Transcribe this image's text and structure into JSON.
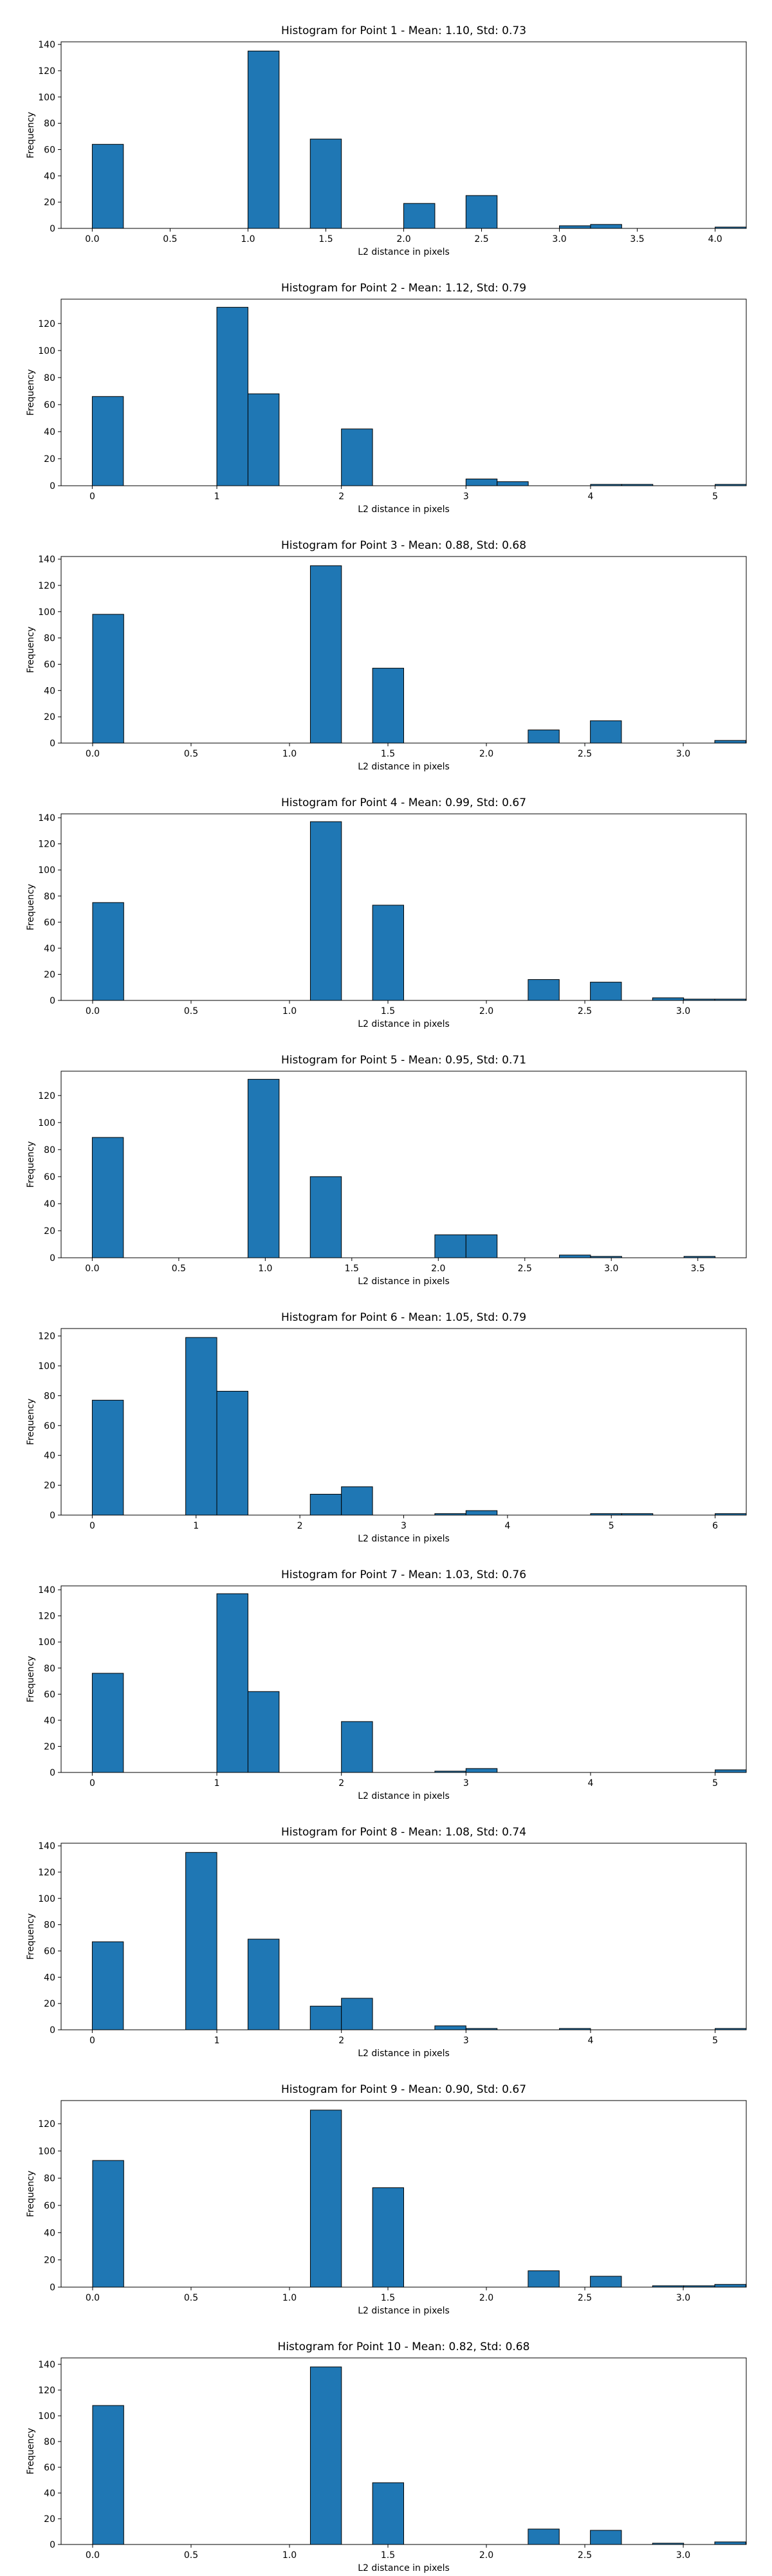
{
  "chart_data": [
    {
      "type": "bar",
      "title": "Histogram for Point 1 - Mean: 1.10, Std: 0.73",
      "xlabel": "L2 distance in pixels",
      "ylabel": "Frequency",
      "xlim": [
        -0.2,
        4.2
      ],
      "ylim": [
        0,
        142
      ],
      "xticks": [
        0,
        0.5,
        1,
        1.5,
        2,
        2.5,
        3,
        3.5,
        4
      ],
      "xtick_labels": [
        "0.0",
        "0.5",
        "1.0",
        "1.5",
        "2.0",
        "2.5",
        "3.0",
        "3.5",
        "4.0"
      ],
      "yticks": [
        0,
        20,
        40,
        60,
        80,
        100,
        120,
        140
      ],
      "ytick_labels": [
        "0",
        "20",
        "40",
        "60",
        "80",
        "100",
        "120",
        "140"
      ],
      "bin_width": 0.2,
      "bin_start": 0,
      "values": [
        64,
        0,
        0,
        0,
        0,
        135,
        0,
        68,
        0,
        0,
        19,
        0,
        25,
        0,
        0,
        2,
        3,
        0,
        0,
        0,
        1
      ]
    },
    {
      "type": "bar",
      "title": "Histogram for Point 2 - Mean: 1.12, Std: 0.79",
      "xlabel": "L2 distance in pixels",
      "ylabel": "Frequency",
      "xlim": [
        -0.25,
        5.25
      ],
      "ylim": [
        0,
        138
      ],
      "xticks": [
        0,
        1,
        2,
        3,
        4,
        5
      ],
      "xtick_labels": [
        "0",
        "1",
        "2",
        "3",
        "4",
        "5"
      ],
      "yticks": [
        0,
        20,
        40,
        60,
        80,
        100,
        120
      ],
      "ytick_labels": [
        "0",
        "20",
        "40",
        "60",
        "80",
        "100",
        "120"
      ],
      "bin_width": 0.25,
      "bin_start": 0,
      "values": [
        66,
        0,
        0,
        0,
        132,
        68,
        0,
        0,
        42,
        0,
        0,
        0,
        5,
        3,
        0,
        0,
        1,
        1,
        0,
        0,
        1
      ]
    },
    {
      "type": "bar",
      "title": "Histogram for Point 3 - Mean: 0.88, Std: 0.68",
      "xlabel": "L2 distance in pixels",
      "ylabel": "Frequency",
      "xlim": [
        -0.16,
        3.32
      ],
      "ylim": [
        0,
        142
      ],
      "xticks": [
        0,
        0.5,
        1,
        1.5,
        2,
        2.5,
        3
      ],
      "xtick_labels": [
        "0.0",
        "0.5",
        "1.0",
        "1.5",
        "2.0",
        "2.5",
        "3.0"
      ],
      "yticks": [
        0,
        20,
        40,
        60,
        80,
        100,
        120,
        140
      ],
      "ytick_labels": [
        "0",
        "20",
        "40",
        "60",
        "80",
        "100",
        "120",
        "140"
      ],
      "bin_width": 0.158,
      "bin_start": 0,
      "values": [
        98,
        0,
        0,
        0,
        0,
        0,
        0,
        135,
        0,
        57,
        0,
        0,
        0,
        0,
        10,
        0,
        17,
        0,
        0,
        0,
        2
      ]
    },
    {
      "type": "bar",
      "title": "Histogram for Point 4 - Mean: 0.99, Std: 0.67",
      "xlabel": "L2 distance in pixels",
      "ylabel": "Frequency",
      "xlim": [
        -0.16,
        3.32
      ],
      "ylim": [
        0,
        143
      ],
      "xticks": [
        0,
        0.5,
        1,
        1.5,
        2,
        2.5,
        3
      ],
      "xtick_labels": [
        "0.0",
        "0.5",
        "1.0",
        "1.5",
        "2.0",
        "2.5",
        "3.0"
      ],
      "yticks": [
        0,
        20,
        40,
        60,
        80,
        100,
        120,
        140
      ],
      "ytick_labels": [
        "0",
        "20",
        "40",
        "60",
        "80",
        "100",
        "120",
        "140"
      ],
      "bin_width": 0.158,
      "bin_start": 0,
      "values": [
        75,
        0,
        0,
        0,
        0,
        0,
        0,
        137,
        0,
        73,
        0,
        0,
        0,
        0,
        16,
        0,
        14,
        0,
        2,
        1,
        1
      ]
    },
    {
      "type": "bar",
      "title": "Histogram for Point 5 - Mean: 0.95, Std: 0.71",
      "xlabel": "L2 distance in pixels",
      "ylabel": "Frequency",
      "xlim": [
        -0.18,
        3.78
      ],
      "ylim": [
        0,
        138
      ],
      "xticks": [
        0,
        0.5,
        1,
        1.5,
        2,
        2.5,
        3,
        3.5
      ],
      "xtick_labels": [
        "0.0",
        "0.5",
        "1.0",
        "1.5",
        "2.0",
        "2.5",
        "3.0",
        "3.5"
      ],
      "yticks": [
        0,
        20,
        40,
        60,
        80,
        100,
        120
      ],
      "ytick_labels": [
        "0",
        "20",
        "40",
        "60",
        "80",
        "100",
        "120"
      ],
      "bin_width": 0.18,
      "bin_start": 0,
      "values": [
        89,
        0,
        0,
        0,
        0,
        132,
        0,
        60,
        0,
        0,
        0,
        17,
        17,
        0,
        0,
        2,
        1,
        0,
        0,
        1,
        0
      ]
    },
    {
      "type": "bar",
      "title": "Histogram for Point 6 - Mean: 1.05, Std: 0.79",
      "xlabel": "L2 distance in pixels",
      "ylabel": "Frequency",
      "xlim": [
        -0.3,
        6.3
      ],
      "ylim": [
        0,
        125
      ],
      "xticks": [
        0,
        1,
        2,
        3,
        4,
        5,
        6
      ],
      "xtick_labels": [
        "0",
        "1",
        "2",
        "3",
        "4",
        "5",
        "6"
      ],
      "yticks": [
        0,
        20,
        40,
        60,
        80,
        100,
        120
      ],
      "ytick_labels": [
        "0",
        "20",
        "40",
        "60",
        "80",
        "100",
        "120"
      ],
      "bin_width": 0.3,
      "bin_start": 0,
      "values": [
        77,
        0,
        0,
        119,
        83,
        0,
        0,
        14,
        19,
        0,
        0,
        1,
        3,
        0,
        0,
        0,
        1,
        1,
        0,
        0,
        1
      ]
    },
    {
      "type": "bar",
      "title": "Histogram for Point 7 - Mean: 1.03, Std: 0.76",
      "xlabel": "L2 distance in pixels",
      "ylabel": "Frequency",
      "xlim": [
        -0.25,
        5.25
      ],
      "ylim": [
        0,
        143
      ],
      "xticks": [
        0,
        1,
        2,
        3,
        4,
        5
      ],
      "xtick_labels": [
        "0",
        "1",
        "2",
        "3",
        "4",
        "5"
      ],
      "yticks": [
        0,
        20,
        40,
        60,
        80,
        100,
        120,
        140
      ],
      "ytick_labels": [
        "0",
        "20",
        "40",
        "60",
        "80",
        "100",
        "120",
        "140"
      ],
      "bin_width": 0.25,
      "bin_start": 0,
      "values": [
        76,
        0,
        0,
        0,
        137,
        62,
        0,
        0,
        39,
        0,
        0,
        1,
        3,
        0,
        0,
        0,
        0,
        0,
        0,
        0,
        2
      ]
    },
    {
      "type": "bar",
      "title": "Histogram for Point 8 - Mean: 1.08, Std: 0.74",
      "xlabel": "L2 distance in pixels",
      "ylabel": "Frequency",
      "xlim": [
        -0.25,
        5.25
      ],
      "ylim": [
        0,
        142
      ],
      "xticks": [
        0,
        1,
        2,
        3,
        4,
        5
      ],
      "xtick_labels": [
        "0",
        "1",
        "2",
        "3",
        "4",
        "5"
      ],
      "yticks": [
        0,
        20,
        40,
        60,
        80,
        100,
        120,
        140
      ],
      "ytick_labels": [
        "0",
        "20",
        "40",
        "60",
        "80",
        "100",
        "120",
        "140"
      ],
      "bin_width": 0.25,
      "bin_start": 0,
      "values": [
        67,
        0,
        0,
        135,
        0,
        69,
        0,
        18,
        24,
        0,
        0,
        3,
        1,
        0,
        0,
        1,
        0,
        0,
        0,
        0,
        1
      ]
    },
    {
      "type": "bar",
      "title": "Histogram for Point 9 - Mean: 0.90, Std: 0.67",
      "xlabel": "L2 distance in pixels",
      "ylabel": "Frequency",
      "xlim": [
        -0.16,
        3.32
      ],
      "ylim": [
        0,
        137
      ],
      "xticks": [
        0,
        0.5,
        1,
        1.5,
        2,
        2.5,
        3
      ],
      "xtick_labels": [
        "0.0",
        "0.5",
        "1.0",
        "1.5",
        "2.0",
        "2.5",
        "3.0"
      ],
      "yticks": [
        0,
        20,
        40,
        60,
        80,
        100,
        120
      ],
      "ytick_labels": [
        "0",
        "20",
        "40",
        "60",
        "80",
        "100",
        "120"
      ],
      "bin_width": 0.158,
      "bin_start": 0,
      "values": [
        93,
        0,
        0,
        0,
        0,
        0,
        0,
        130,
        0,
        73,
        0,
        0,
        0,
        0,
        12,
        0,
        8,
        0,
        1,
        1,
        2
      ]
    },
    {
      "type": "bar",
      "title": "Histogram for Point 10 - Mean: 0.82, Std: 0.68",
      "xlabel": "L2 distance in pixels",
      "ylabel": "Frequency",
      "xlim": [
        -0.16,
        3.32
      ],
      "ylim": [
        0,
        145
      ],
      "xticks": [
        0,
        0.5,
        1,
        1.5,
        2,
        2.5,
        3
      ],
      "xtick_labels": [
        "0.0",
        "0.5",
        "1.0",
        "1.5",
        "2.0",
        "2.5",
        "3.0"
      ],
      "yticks": [
        0,
        20,
        40,
        60,
        80,
        100,
        120,
        140
      ],
      "ytick_labels": [
        "0",
        "20",
        "40",
        "60",
        "80",
        "100",
        "120",
        "140"
      ],
      "bin_width": 0.158,
      "bin_start": 0,
      "values": [
        108,
        0,
        0,
        0,
        0,
        0,
        0,
        138,
        0,
        48,
        0,
        0,
        0,
        0,
        12,
        0,
        11,
        0,
        1,
        0,
        2
      ]
    }
  ],
  "colors": {
    "bar_fill": "#1f77b4",
    "bar_edge": "#000000",
    "axes": "#000000",
    "background": "#ffffff"
  }
}
